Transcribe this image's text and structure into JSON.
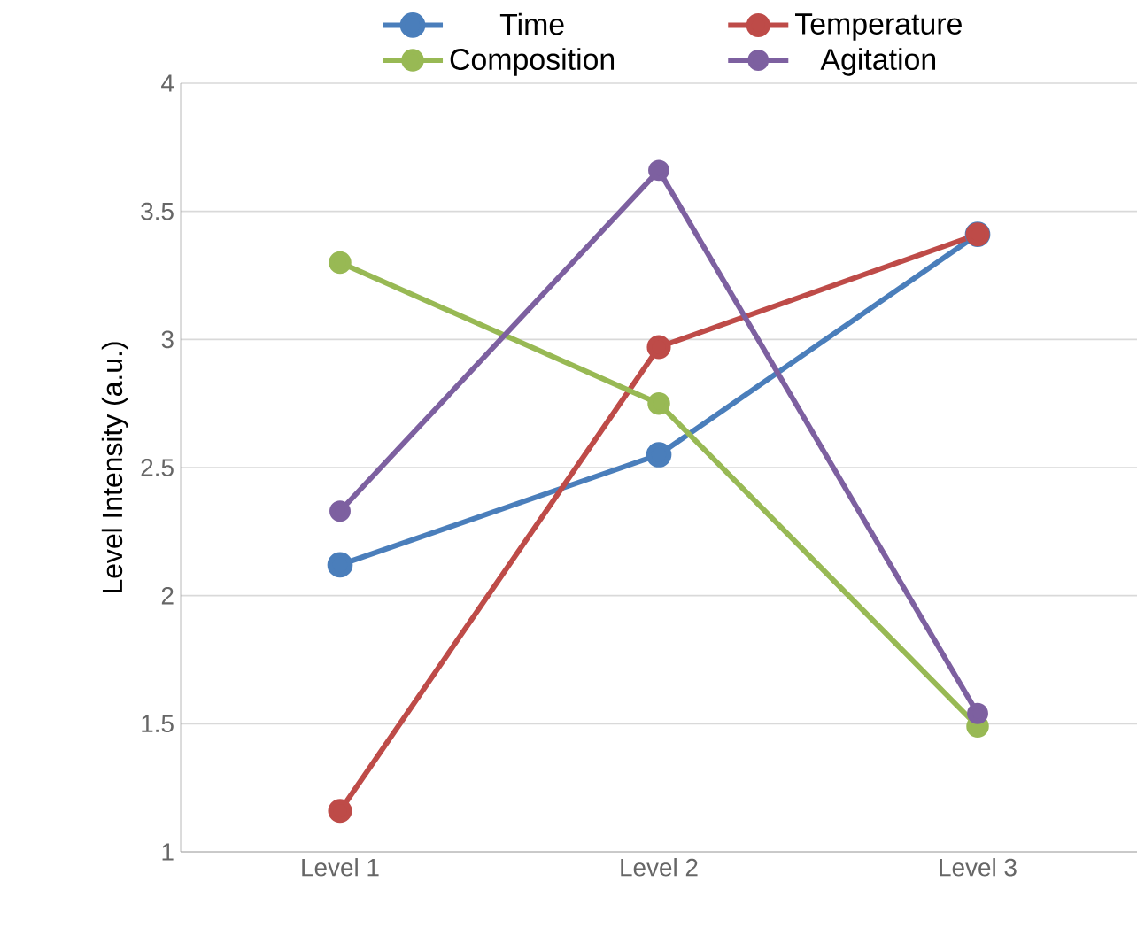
{
  "chart_data": {
    "type": "line",
    "ylabel": "Level Intensity (a.u.)",
    "categories": [
      "Level 1",
      "Level 2",
      "Level 3"
    ],
    "series": [
      {
        "name": "Time",
        "color": "#4a7ebb",
        "values": [
          2.12,
          2.55,
          3.41
        ]
      },
      {
        "name": "Temperature",
        "color": "#be4b48",
        "values": [
          1.16,
          2.97,
          3.41
        ]
      },
      {
        "name": "Composition",
        "color": "#98b954",
        "values": [
          3.3,
          2.75,
          1.49
        ]
      },
      {
        "name": "Agitation",
        "color": "#7d60a0",
        "values": [
          2.33,
          3.66,
          1.54
        ]
      }
    ],
    "ylim": [
      1,
      4
    ],
    "yticks": [
      1,
      1.5,
      2,
      2.5,
      3,
      3.5,
      4
    ],
    "grid": "y",
    "legend": "top",
    "marker": "circle",
    "line_style": "solid"
  }
}
